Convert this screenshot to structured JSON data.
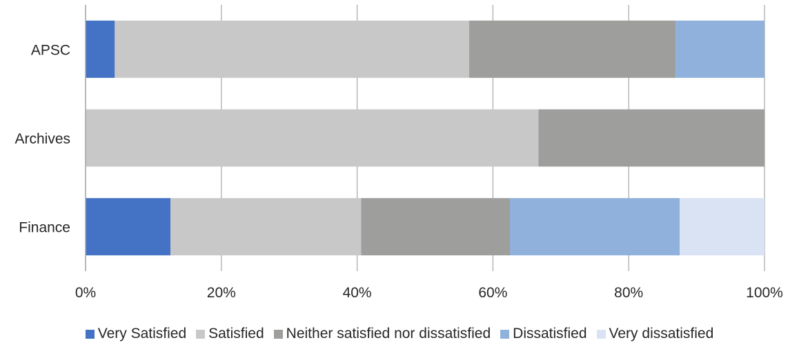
{
  "chart_data": {
    "type": "bar",
    "orientation": "horizontal",
    "stacked": "percent",
    "categories": [
      "APSC",
      "Archives",
      "Finance"
    ],
    "series": [
      {
        "name": "Very Satisfied",
        "color": "#4472C4",
        "values": [
          4.3,
          0,
          12.5
        ]
      },
      {
        "name": "Satisfied",
        "color": "#C8C8C8",
        "values": [
          52.2,
          66.7,
          28.1
        ]
      },
      {
        "name": "Neither satisfied nor dissatisfied",
        "color": "#9E9E9C",
        "values": [
          30.4,
          33.3,
          21.9
        ]
      },
      {
        "name": "Dissatisfied",
        "color": "#8FB1DB",
        "values": [
          13.1,
          0,
          25.0
        ]
      },
      {
        "name": "Very dissatisfied",
        "color": "#DAE3F3",
        "values": [
          0,
          0,
          12.5
        ]
      }
    ],
    "xlim": [
      0,
      100
    ],
    "xticks": [
      "0%",
      "20%",
      "40%",
      "60%",
      "80%",
      "100%"
    ],
    "grid": true,
    "legend_position": "bottom"
  }
}
